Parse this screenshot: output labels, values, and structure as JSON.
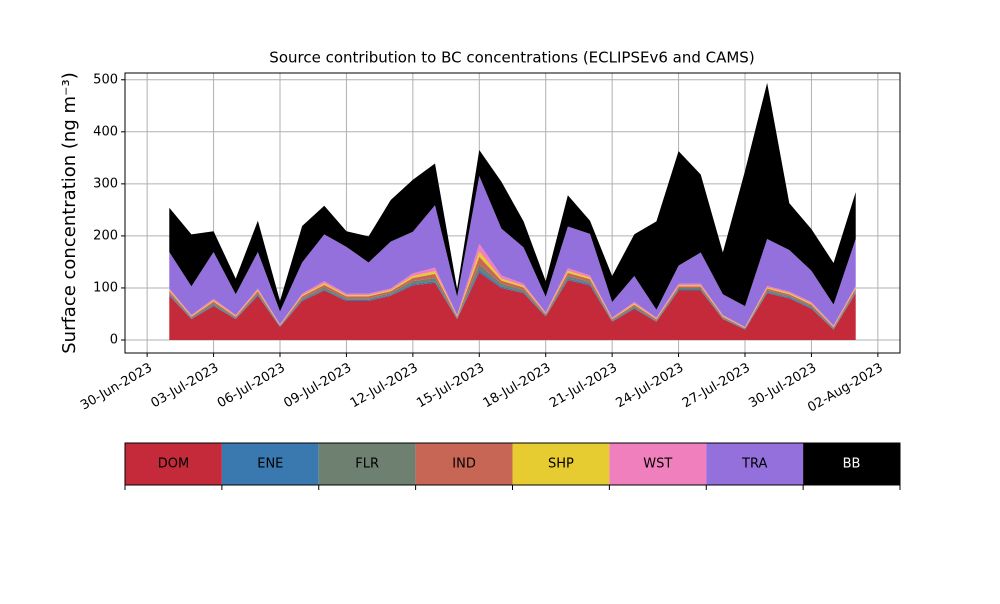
{
  "chart_data": {
    "type": "stacked_area",
    "title": "Source contribution to BC concentrations (ECLIPSEv6 and CAMS)",
    "ylabel": "Surface concentration (ng m⁻³)",
    "x": [
      "2023-07-01",
      "2023-07-02",
      "2023-07-03",
      "2023-07-04",
      "2023-07-05",
      "2023-07-06",
      "2023-07-07",
      "2023-07-08",
      "2023-07-09",
      "2023-07-10",
      "2023-07-11",
      "2023-07-12",
      "2023-07-13",
      "2023-07-14",
      "2023-07-15",
      "2023-07-16",
      "2023-07-17",
      "2023-07-18",
      "2023-07-19",
      "2023-07-20",
      "2023-07-21",
      "2023-07-22",
      "2023-07-23",
      "2023-07-24",
      "2023-07-25",
      "2023-07-26",
      "2023-07-27",
      "2023-07-28",
      "2023-07-29",
      "2023-07-30",
      "2023-07-31",
      "2023-08-01"
    ],
    "series": [
      {
        "name": "DOM",
        "color": "#c42a3a",
        "values": [
          85,
          40,
          65,
          40,
          85,
          25,
          75,
          95,
          75,
          75,
          85,
          105,
          110,
          40,
          130,
          100,
          90,
          45,
          115,
          105,
          35,
          60,
          35,
          95,
          95,
          40,
          20,
          90,
          80,
          60,
          20,
          90
        ]
      },
      {
        "name": "ENE",
        "color": "#3a78b0",
        "values": [
          2,
          1,
          2,
          1,
          2,
          1,
          2,
          2,
          2,
          2,
          2,
          3,
          3,
          1,
          5,
          3,
          2,
          1,
          3,
          3,
          1,
          2,
          1,
          2,
          2,
          1,
          1,
          2,
          2,
          2,
          1,
          2
        ]
      },
      {
        "name": "FLR",
        "color": "#6e8070",
        "values": [
          3,
          2,
          3,
          2,
          3,
          1,
          3,
          4,
          3,
          3,
          3,
          5,
          6,
          2,
          10,
          5,
          4,
          2,
          5,
          4,
          2,
          3,
          2,
          3,
          3,
          2,
          1,
          3,
          3,
          3,
          2,
          3
        ]
      },
      {
        "name": "IND",
        "color": "#c86656",
        "values": [
          4,
          2,
          4,
          2,
          4,
          1,
          4,
          5,
          4,
          4,
          4,
          6,
          8,
          2,
          15,
          6,
          5,
          2,
          6,
          5,
          2,
          3,
          2,
          3,
          3,
          2,
          1,
          4,
          3,
          3,
          2,
          4
        ]
      },
      {
        "name": "SHP",
        "color": "#e6cc30",
        "values": [
          2,
          1,
          2,
          1,
          2,
          1,
          2,
          3,
          2,
          2,
          2,
          4,
          5,
          1,
          10,
          4,
          3,
          1,
          4,
          3,
          1,
          2,
          1,
          2,
          2,
          1,
          1,
          2,
          2,
          2,
          1,
          2
        ]
      },
      {
        "name": "WST",
        "color": "#f07fbd",
        "values": [
          3,
          2,
          3,
          2,
          3,
          1,
          3,
          4,
          3,
          3,
          3,
          5,
          7,
          2,
          15,
          6,
          4,
          2,
          5,
          4,
          2,
          3,
          2,
          3,
          3,
          2,
          1,
          3,
          3,
          3,
          2,
          3
        ]
      },
      {
        "name": "TRA",
        "color": "#9370db",
        "values": [
          70,
          55,
          90,
          40,
          70,
          25,
          60,
          90,
          90,
          60,
          90,
          80,
          120,
          35,
          130,
          90,
          70,
          30,
          80,
          80,
          30,
          50,
          15,
          35,
          60,
          40,
          40,
          90,
          80,
          60,
          40,
          90
        ]
      },
      {
        "name": "BB",
        "color": "#000000",
        "values": [
          85,
          100,
          40,
          30,
          60,
          20,
          70,
          55,
          30,
          50,
          80,
          100,
          80,
          15,
          50,
          90,
          50,
          30,
          60,
          25,
          50,
          80,
          170,
          220,
          150,
          80,
          260,
          300,
          90,
          80,
          80,
          90
        ]
      }
    ],
    "xlim": [
      "2023-06-29",
      "2023-08-03"
    ],
    "xticks": [
      {
        "value": "2023-06-30",
        "label": "30-Jun-2023"
      },
      {
        "value": "2023-07-03",
        "label": "03-Jul-2023"
      },
      {
        "value": "2023-07-06",
        "label": "06-Jul-2023"
      },
      {
        "value": "2023-07-09",
        "label": "09-Jul-2023"
      },
      {
        "value": "2023-07-12",
        "label": "12-Jul-2023"
      },
      {
        "value": "2023-07-15",
        "label": "15-Jul-2023"
      },
      {
        "value": "2023-07-18",
        "label": "18-Jul-2023"
      },
      {
        "value": "2023-07-21",
        "label": "21-Jul-2023"
      },
      {
        "value": "2023-07-24",
        "label": "24-Jul-2023"
      },
      {
        "value": "2023-07-27",
        "label": "27-Jul-2023"
      },
      {
        "value": "2023-07-30",
        "label": "30-Jul-2023"
      },
      {
        "value": "2023-08-02",
        "label": "02-Aug-2023"
      }
    ],
    "ylim": [
      -25,
      513
    ],
    "yticks": [
      0,
      100,
      200,
      300,
      400,
      500
    ],
    "grid": true,
    "legend": "bottom"
  }
}
